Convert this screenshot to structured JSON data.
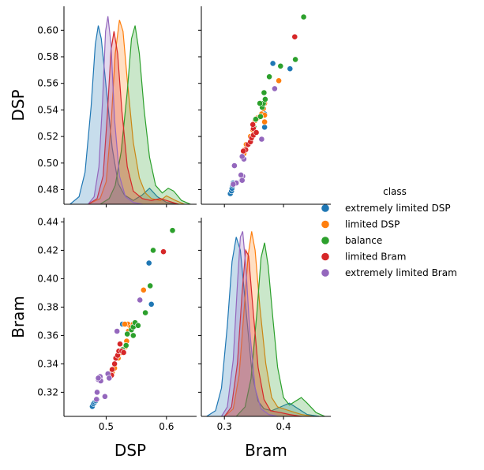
{
  "chart_data": {
    "type": "pairplot",
    "variables": [
      "DSP",
      "Bram"
    ],
    "axis_titles": {
      "DSP": "DSP",
      "Bram": "Bram"
    },
    "axis_ranges": {
      "DSP": [
        0.43,
        0.65
      ],
      "Bram": [
        0.261,
        0.48
      ]
    },
    "axis_ranges_y": {
      "DSP": [
        0.469,
        0.618
      ],
      "Bram": [
        0.303,
        0.443
      ]
    },
    "ticks": {
      "DSP_x": [
        {
          "v": 0.5,
          "label": "0.5"
        },
        {
          "v": 0.6,
          "label": "0.6"
        }
      ],
      "Bram_x": [
        {
          "v": 0.3,
          "label": "0.3"
        },
        {
          "v": 0.4,
          "label": "0.4"
        }
      ],
      "DSP_y": [
        {
          "v": 0.48,
          "label": "0.48"
        },
        {
          "v": 0.5,
          "label": "0.50"
        },
        {
          "v": 0.52,
          "label": "0.52"
        },
        {
          "v": 0.54,
          "label": "0.54"
        },
        {
          "v": 0.56,
          "label": "0.56"
        },
        {
          "v": 0.58,
          "label": "0.58"
        },
        {
          "v": 0.6,
          "label": "0.60"
        }
      ],
      "Bram_y": [
        {
          "v": 0.32,
          "label": "0.32"
        },
        {
          "v": 0.34,
          "label": "0.34"
        },
        {
          "v": 0.36,
          "label": "0.36"
        },
        {
          "v": 0.38,
          "label": "0.38"
        },
        {
          "v": 0.4,
          "label": "0.40"
        },
        {
          "v": 0.42,
          "label": "0.42"
        },
        {
          "v": 0.44,
          "label": "0.44"
        }
      ]
    },
    "legend": {
      "title": "class",
      "position": "right"
    },
    "series": [
      {
        "name": "extremely limited DSP",
        "color": "#1f77b4",
        "points": [
          [
            0.477,
            0.31
          ],
          [
            0.479,
            0.312
          ],
          [
            0.481,
            0.313
          ],
          [
            0.483,
            0.314
          ],
          [
            0.485,
            0.315
          ],
          [
            0.527,
            0.368
          ],
          [
            0.571,
            0.411
          ],
          [
            0.575,
            0.382
          ],
          [
            0.537,
            0.368
          ]
        ],
        "kde_dsp": [
          [
            0.44,
            0
          ],
          [
            0.455,
            0.04
          ],
          [
            0.465,
            0.17
          ],
          [
            0.475,
            0.52
          ],
          [
            0.482,
            0.85
          ],
          [
            0.487,
            0.95
          ],
          [
            0.492,
            0.88
          ],
          [
            0.5,
            0.62
          ],
          [
            0.51,
            0.3
          ],
          [
            0.52,
            0.11
          ],
          [
            0.53,
            0.05
          ],
          [
            0.545,
            0.02
          ],
          [
            0.56,
            0.05
          ],
          [
            0.572,
            0.085
          ],
          [
            0.585,
            0.04
          ],
          [
            0.6,
            0.01
          ],
          [
            0.62,
            0
          ]
        ],
        "kde_bram": [
          [
            0.27,
            0
          ],
          [
            0.285,
            0.03
          ],
          [
            0.295,
            0.15
          ],
          [
            0.305,
            0.48
          ],
          [
            0.313,
            0.82
          ],
          [
            0.32,
            0.95
          ],
          [
            0.327,
            0.88
          ],
          [
            0.337,
            0.55
          ],
          [
            0.347,
            0.22
          ],
          [
            0.357,
            0.08
          ],
          [
            0.367,
            0.04
          ],
          [
            0.38,
            0.03
          ],
          [
            0.395,
            0.05
          ],
          [
            0.41,
            0.07
          ],
          [
            0.425,
            0.04
          ],
          [
            0.44,
            0.01
          ],
          [
            0.46,
            0
          ]
        ]
      },
      {
        "name": "limited DSP",
        "color": "#ff7f0e",
        "points": [
          [
            0.508,
            0.334
          ],
          [
            0.511,
            0.336
          ],
          [
            0.514,
            0.337
          ],
          [
            0.51,
            0.334
          ],
          [
            0.507,
            0.333
          ],
          [
            0.52,
            0.344
          ],
          [
            0.525,
            0.348
          ],
          [
            0.532,
            0.352
          ],
          [
            0.534,
            0.356
          ],
          [
            0.537,
            0.363
          ],
          [
            0.536,
            0.368
          ],
          [
            0.531,
            0.368
          ],
          [
            0.541,
            0.366
          ],
          [
            0.545,
            0.368
          ],
          [
            0.562,
            0.392
          ]
        ],
        "kde_dsp": [
          [
            0.47,
            0
          ],
          [
            0.49,
            0.03
          ],
          [
            0.5,
            0.12
          ],
          [
            0.508,
            0.42
          ],
          [
            0.515,
            0.8
          ],
          [
            0.522,
            0.98
          ],
          [
            0.528,
            0.92
          ],
          [
            0.535,
            0.66
          ],
          [
            0.545,
            0.33
          ],
          [
            0.555,
            0.14
          ],
          [
            0.565,
            0.06
          ],
          [
            0.575,
            0.03
          ],
          [
            0.59,
            0.02
          ],
          [
            0.6,
            0.045
          ],
          [
            0.615,
            0.02
          ],
          [
            0.63,
            0
          ]
        ],
        "kde_bram": [
          [
            0.3,
            0
          ],
          [
            0.315,
            0.04
          ],
          [
            0.325,
            0.22
          ],
          [
            0.333,
            0.55
          ],
          [
            0.34,
            0.85
          ],
          [
            0.346,
            0.98
          ],
          [
            0.352,
            0.88
          ],
          [
            0.36,
            0.58
          ],
          [
            0.37,
            0.28
          ],
          [
            0.38,
            0.1
          ],
          [
            0.39,
            0.05
          ],
          [
            0.4,
            0.04
          ],
          [
            0.41,
            0.03
          ],
          [
            0.43,
            0.01
          ],
          [
            0.45,
            0
          ]
        ]
      },
      {
        "name": "balance",
        "color": "#2ca02c",
        "points": [
          [
            0.527,
            0.35
          ],
          [
            0.533,
            0.353
          ],
          [
            0.535,
            0.361
          ],
          [
            0.542,
            0.364
          ],
          [
            0.545,
            0.366
          ],
          [
            0.548,
            0.369
          ],
          [
            0.553,
            0.367
          ],
          [
            0.565,
            0.376
          ],
          [
            0.573,
            0.395
          ],
          [
            0.578,
            0.42
          ],
          [
            0.61,
            0.434
          ],
          [
            0.545,
            0.36
          ]
        ],
        "kde_dsp": [
          [
            0.49,
            0
          ],
          [
            0.505,
            0.03
          ],
          [
            0.515,
            0.1
          ],
          [
            0.525,
            0.28
          ],
          [
            0.535,
            0.6
          ],
          [
            0.542,
            0.88
          ],
          [
            0.548,
            0.95
          ],
          [
            0.555,
            0.8
          ],
          [
            0.563,
            0.5
          ],
          [
            0.572,
            0.25
          ],
          [
            0.582,
            0.1
          ],
          [
            0.593,
            0.06
          ],
          [
            0.603,
            0.085
          ],
          [
            0.612,
            0.07
          ],
          [
            0.625,
            0.02
          ],
          [
            0.64,
            0
          ]
        ],
        "kde_bram": [
          [
            0.32,
            0
          ],
          [
            0.335,
            0.05
          ],
          [
            0.345,
            0.2
          ],
          [
            0.355,
            0.55
          ],
          [
            0.362,
            0.84
          ],
          [
            0.368,
            0.92
          ],
          [
            0.374,
            0.8
          ],
          [
            0.382,
            0.52
          ],
          [
            0.39,
            0.26
          ],
          [
            0.4,
            0.1
          ],
          [
            0.41,
            0.06
          ],
          [
            0.42,
            0.08
          ],
          [
            0.43,
            0.1
          ],
          [
            0.44,
            0.07
          ],
          [
            0.455,
            0.02
          ],
          [
            0.47,
            0
          ]
        ]
      },
      {
        "name": "limited Bram",
        "color": "#d62728",
        "points": [
          [
            0.51,
            0.336
          ],
          [
            0.509,
            0.332
          ],
          [
            0.514,
            0.34
          ],
          [
            0.516,
            0.344
          ],
          [
            0.519,
            0.346
          ],
          [
            0.521,
            0.349
          ],
          [
            0.526,
            0.349
          ],
          [
            0.523,
            0.354
          ],
          [
            0.529,
            0.348
          ],
          [
            0.595,
            0.419
          ]
        ],
        "kde_dsp": [
          [
            0.47,
            0
          ],
          [
            0.485,
            0.03
          ],
          [
            0.495,
            0.15
          ],
          [
            0.502,
            0.48
          ],
          [
            0.508,
            0.82
          ],
          [
            0.513,
            0.92
          ],
          [
            0.519,
            0.8
          ],
          [
            0.526,
            0.5
          ],
          [
            0.535,
            0.2
          ],
          [
            0.545,
            0.07
          ],
          [
            0.56,
            0.03
          ],
          [
            0.575,
            0.02
          ],
          [
            0.59,
            0.03
          ],
          [
            0.6,
            0.02
          ],
          [
            0.62,
            0
          ]
        ],
        "kde_bram": [
          [
            0.3,
            0
          ],
          [
            0.312,
            0.05
          ],
          [
            0.322,
            0.28
          ],
          [
            0.33,
            0.66
          ],
          [
            0.336,
            0.88
          ],
          [
            0.341,
            0.85
          ],
          [
            0.348,
            0.58
          ],
          [
            0.357,
            0.26
          ],
          [
            0.367,
            0.09
          ],
          [
            0.378,
            0.03
          ],
          [
            0.395,
            0.02
          ],
          [
            0.41,
            0.01
          ],
          [
            0.43,
            0
          ]
        ]
      },
      {
        "name": "extremely limited Bram",
        "color": "#9467bd",
        "points": [
          [
            0.487,
            0.329
          ],
          [
            0.49,
            0.331
          ],
          [
            0.491,
            0.328
          ],
          [
            0.487,
            0.33
          ],
          [
            0.503,
            0.333
          ],
          [
            0.505,
            0.33
          ],
          [
            0.498,
            0.317
          ],
          [
            0.485,
            0.32
          ],
          [
            0.484,
            0.315
          ],
          [
            0.518,
            0.363
          ],
          [
            0.556,
            0.385
          ]
        ],
        "kde_dsp": [
          [
            0.47,
            0
          ],
          [
            0.48,
            0.04
          ],
          [
            0.488,
            0.2
          ],
          [
            0.494,
            0.55
          ],
          [
            0.499,
            0.92
          ],
          [
            0.503,
            1.0
          ],
          [
            0.508,
            0.85
          ],
          [
            0.514,
            0.45
          ],
          [
            0.522,
            0.15
          ],
          [
            0.532,
            0.04
          ],
          [
            0.545,
            0.01
          ],
          [
            0.56,
            0
          ]
        ],
        "kde_bram": [
          [
            0.295,
            0
          ],
          [
            0.305,
            0.05
          ],
          [
            0.315,
            0.3
          ],
          [
            0.322,
            0.7
          ],
          [
            0.327,
            0.95
          ],
          [
            0.331,
            0.98
          ],
          [
            0.336,
            0.8
          ],
          [
            0.343,
            0.45
          ],
          [
            0.352,
            0.15
          ],
          [
            0.362,
            0.04
          ],
          [
            0.375,
            0.01
          ],
          [
            0.39,
            0
          ]
        ]
      }
    ]
  }
}
